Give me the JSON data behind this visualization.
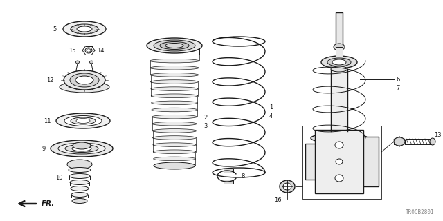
{
  "background_color": "#ffffff",
  "line_color": "#1a1a1a",
  "diagram_code": "TR0CB2801",
  "figsize": [
    6.4,
    3.2
  ],
  "dpi": 100
}
